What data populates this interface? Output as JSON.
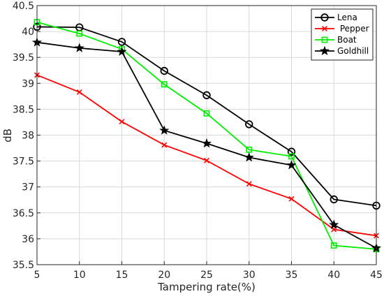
{
  "chart_data": {
    "type": "line",
    "title": "",
    "xlabel": "Tampering rate(%)",
    "ylabel": "dB",
    "x": [
      5,
      10,
      15,
      20,
      25,
      30,
      35,
      40,
      45
    ],
    "xticks": [
      "5",
      "10",
      "15",
      "20",
      "25",
      "30",
      "35",
      "40",
      "45"
    ],
    "yticks": [
      "35.5",
      "36",
      "36.5",
      "37",
      "37.5",
      "38",
      "38.5",
      "39",
      "39.5",
      "40",
      "40.5"
    ],
    "xlim": [
      5,
      45
    ],
    "ylim": [
      35.5,
      40.5
    ],
    "grid": true,
    "legend_position": "top-right",
    "series": [
      {
        "name": "Lena",
        "color": "#000000",
        "marker": "circle",
        "values": [
          40.09,
          40.08,
          39.8,
          39.24,
          38.77,
          38.21,
          37.68,
          36.76,
          36.64
        ]
      },
      {
        "name": " Pepper",
        "color": "#ff0000",
        "marker": "x",
        "values": [
          39.16,
          38.83,
          38.26,
          37.81,
          37.51,
          37.06,
          36.77,
          36.18,
          36.06
        ]
      },
      {
        "name": "Boat",
        "color": "#00ee00",
        "marker": "square",
        "values": [
          40.18,
          39.96,
          39.66,
          38.98,
          38.42,
          37.72,
          37.59,
          35.87,
          35.8
        ]
      },
      {
        "name": "Goldhill",
        "color": "#000000",
        "marker": "star",
        "values": [
          39.79,
          39.68,
          39.61,
          38.09,
          37.84,
          37.57,
          37.42,
          36.27,
          35.82
        ]
      }
    ]
  }
}
